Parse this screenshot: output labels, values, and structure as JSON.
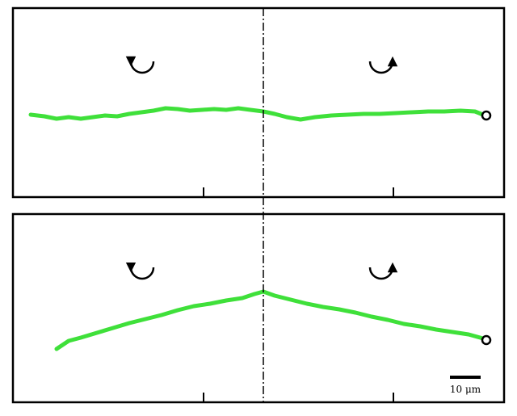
{
  "scale_bar": {
    "label": "10 μm"
  }
}
